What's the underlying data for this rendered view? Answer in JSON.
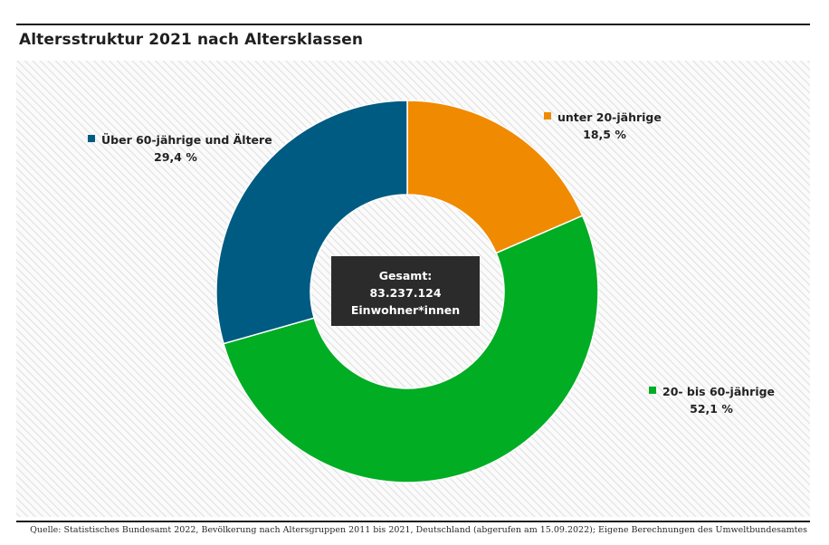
{
  "title": "Altersstruktur 2021 nach Altersklassen",
  "source": "Quelle: Statistisches Bundesamt 2022, Bevölkerung nach Altersgruppen 2011 bis 2021, Deutschland (abgerufen am 15.09.2022); Eigene Berechnungen des Umweltbundesamtes",
  "center_label": {
    "line1": "Gesamt:",
    "line2": "83.237.124",
    "line3": "Einwohner*innen"
  },
  "chart_data": {
    "type": "pie",
    "title": "Altersstruktur 2021 nach Altersklassen",
    "donut": true,
    "slices": [
      {
        "label": "unter 20-jährige",
        "value": 18.5,
        "value_label": "18,5 %",
        "color": "#f08a00"
      },
      {
        "label": "20- bis 60-jährige",
        "value": 52.1,
        "value_label": "52,1 %",
        "color": "#00ad23"
      },
      {
        "label": "Über 60-jährige und Ältere",
        "value": 29.4,
        "value_label": "29,4 %",
        "color": "#005b82"
      }
    ],
    "total_label": "83.237.124"
  },
  "colors": {
    "center_box": "#2b2b2b",
    "background_hatch": "#e4e4e4"
  }
}
